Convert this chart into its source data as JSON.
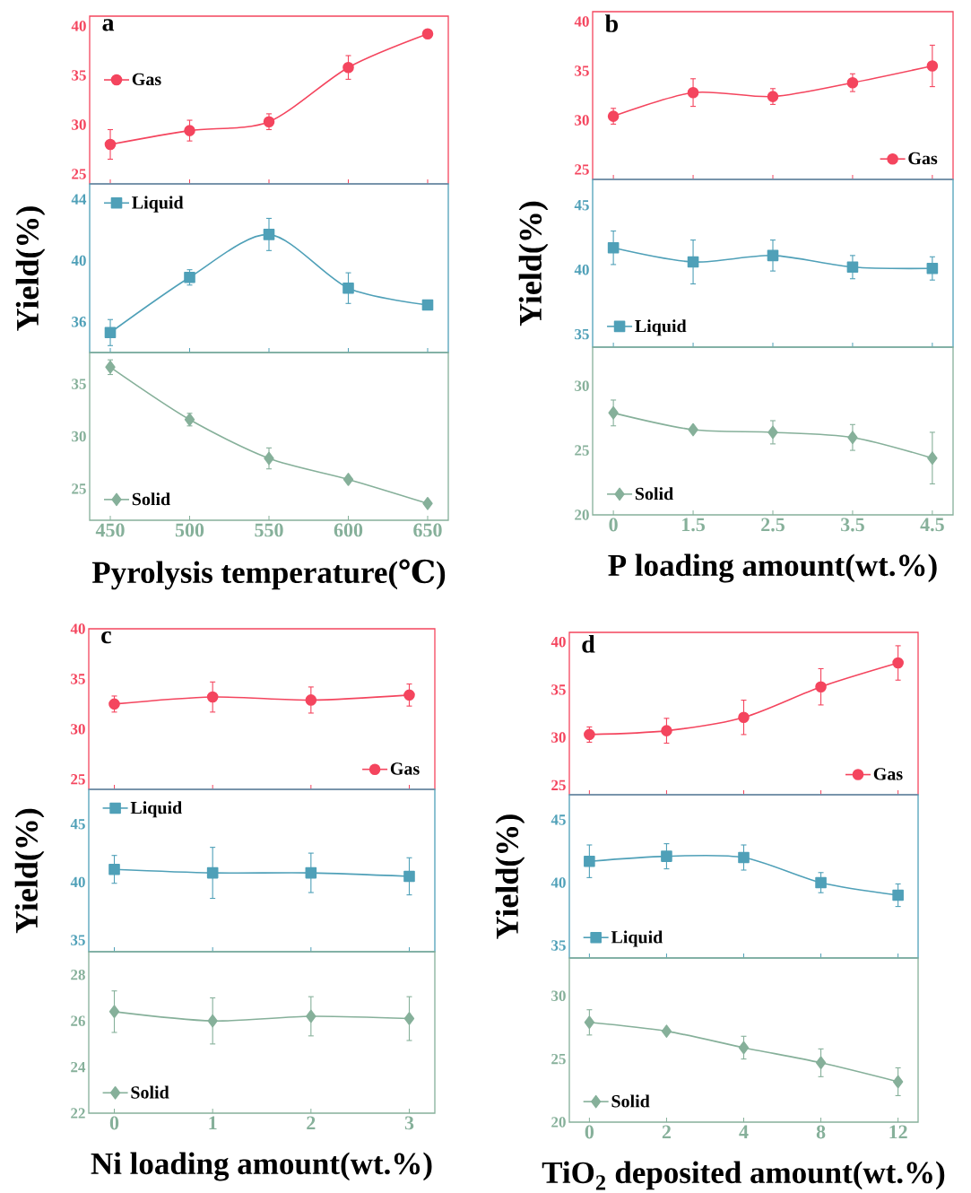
{
  "chart_data": [
    {
      "type": "line",
      "title": "a",
      "categories": [
        "450",
        "500",
        "550",
        "600",
        "650"
      ],
      "tick_labels": "y",
      "marker": "circle",
      "legend": "left",
      "ylim": [
        24,
        41
      ],
      "yticks": [
        25,
        30,
        35,
        40
      ],
      "series": [
        {
          "name": "Gas",
          "color": "#f4455e",
          "values": [
            28.0,
            29.4,
            30.3,
            35.8,
            39.2
          ],
          "errors": [
            1.5,
            1.05,
            0.8,
            1.2,
            null
          ]
        }
      ]
    },
    {
      "type": "line",
      "ylabel": "Yield(%)",
      "categories": [
        "450",
        "500",
        "550",
        "600",
        "650"
      ],
      "tick_labels": "y",
      "marker": "square",
      "legend": "top left",
      "ylim": [
        34,
        45
      ],
      "yticks": [
        36,
        40,
        44
      ],
      "series": [
        {
          "name": "Liquid",
          "color": "#4fa0b8",
          "values": [
            35.3,
            38.9,
            41.7,
            38.2,
            37.1
          ],
          "errors": [
            0.85,
            0.5,
            1.05,
            1.0,
            null
          ]
        }
      ]
    },
    {
      "type": "line",
      "xlabel": "Pyrolysis temperature(℃)",
      "categories": [
        "450",
        "500",
        "550",
        "600",
        "650"
      ],
      "marker": "diamond",
      "legend": "bottom left",
      "ylim": [
        22,
        38
      ],
      "yticks": [
        25,
        30,
        35
      ],
      "series": [
        {
          "name": "Solid",
          "color": "#86b09a",
          "values": [
            36.6,
            31.6,
            27.9,
            25.9,
            23.6
          ],
          "errors": [
            0.7,
            0.6,
            1.0,
            null,
            null
          ]
        }
      ]
    },
    {
      "type": "line",
      "title": "b",
      "categories": [
        "0",
        "1.5",
        "2.5",
        "3.5",
        "4.5"
      ],
      "tick_labels": "y",
      "marker": "circle",
      "legend": "bottom right",
      "ylim": [
        24,
        41
      ],
      "yticks": [
        25,
        30,
        35,
        40
      ],
      "series": [
        {
          "name": "Gas",
          "color": "#f4455e",
          "values": [
            30.4,
            32.8,
            32.4,
            33.8,
            35.5
          ],
          "errors": [
            0.8,
            1.4,
            0.8,
            0.9,
            2.1
          ]
        }
      ]
    },
    {
      "type": "line",
      "ylabel": "Yield(%)",
      "categories": [
        "0",
        "1.5",
        "2.5",
        "3.5",
        "4.5"
      ],
      "tick_labels": "y",
      "marker": "square",
      "legend": "bottom left",
      "ylim": [
        34,
        47
      ],
      "yticks": [
        35,
        40,
        45
      ],
      "series": [
        {
          "name": "Liquid",
          "color": "#4fa0b8",
          "values": [
            41.7,
            40.6,
            41.1,
            40.2,
            40.1
          ],
          "errors": [
            1.3,
            1.7,
            1.2,
            0.9,
            0.9
          ]
        }
      ]
    },
    {
      "type": "line",
      "xlabel": "P loading amount(wt.%)",
      "categories": [
        "0",
        "1.5",
        "2.5",
        "3.5",
        "4.5"
      ],
      "marker": "diamond",
      "legend": "bottom left",
      "ylim": [
        20,
        33
      ],
      "yticks": [
        20,
        25,
        30
      ],
      "series": [
        {
          "name": "Solid",
          "color": "#86b09a",
          "values": [
            27.9,
            26.6,
            26.4,
            26.0,
            24.4
          ],
          "errors": [
            1.0,
            null,
            0.9,
            1.0,
            2.0
          ]
        }
      ]
    },
    {
      "type": "line",
      "title": "c",
      "categories": [
        "0",
        "1",
        "2",
        "3"
      ],
      "tick_labels": "y",
      "marker": "circle",
      "legend": "bottom right",
      "ylim": [
        24,
        40
      ],
      "yticks": [
        25,
        30,
        35,
        40
      ],
      "series": [
        {
          "name": "Gas",
          "color": "#f4455e",
          "values": [
            32.5,
            33.2,
            32.9,
            33.4
          ],
          "errors": [
            0.8,
            1.5,
            1.3,
            1.1
          ]
        }
      ]
    },
    {
      "type": "line",
      "ylabel": "Yield(%)",
      "categories": [
        "0",
        "1",
        "2",
        "3"
      ],
      "tick_labels": "y",
      "marker": "square",
      "legend": "top left",
      "ylim": [
        34,
        48
      ],
      "yticks": [
        35,
        40,
        45
      ],
      "series": [
        {
          "name": "Liquid",
          "color": "#4fa0b8",
          "values": [
            41.1,
            40.8,
            40.8,
            40.5
          ],
          "errors": [
            1.2,
            2.2,
            1.7,
            1.6
          ]
        }
      ]
    },
    {
      "type": "line",
      "xlabel": "Ni loading amount(wt.%)",
      "categories": [
        "0",
        "1",
        "2",
        "3"
      ],
      "marker": "diamond",
      "legend": "bottom left",
      "ylim": [
        22,
        29
      ],
      "yticks": [
        22,
        24,
        26,
        28
      ],
      "series": [
        {
          "name": "Solid",
          "color": "#86b09a",
          "values": [
            26.4,
            26.0,
            26.2,
            26.1
          ],
          "errors": [
            0.9,
            1.0,
            0.85,
            0.95
          ]
        }
      ]
    },
    {
      "type": "line",
      "title": "d",
      "categories": [
        "0",
        "2",
        "4",
        "8",
        "12"
      ],
      "tick_labels": "y",
      "marker": "circle",
      "legend": "bottom right",
      "ylim": [
        24,
        41
      ],
      "yticks": [
        25,
        30,
        35,
        40
      ],
      "series": [
        {
          "name": "Gas",
          "color": "#f4455e",
          "values": [
            30.3,
            30.7,
            32.1,
            35.3,
            37.8
          ],
          "errors": [
            0.8,
            1.3,
            1.8,
            1.9,
            1.8
          ]
        }
      ]
    },
    {
      "type": "line",
      "ylabel": "Yield(%)",
      "categories": [
        "0",
        "2",
        "4",
        "8",
        "12"
      ],
      "tick_labels": "y",
      "marker": "square",
      "legend": "bottom left",
      "ylim": [
        34,
        47
      ],
      "yticks": [
        35,
        40,
        45
      ],
      "series": [
        {
          "name": "Liquid",
          "color": "#4fa0b8",
          "values": [
            41.7,
            42.1,
            42.0,
            40.0,
            39.0
          ],
          "errors": [
            1.3,
            1.0,
            1.0,
            0.8,
            0.9
          ]
        }
      ]
    },
    {
      "type": "line",
      "xlabel": "TiO$_{2}$ deposited amount(wt.%)",
      "categories": [
        "0",
        "2",
        "4",
        "8",
        "12"
      ],
      "marker": "diamond",
      "legend": "bottom left",
      "ylim": [
        20,
        33
      ],
      "yticks": [
        20,
        25,
        30
      ],
      "series": [
        {
          "name": "Solid",
          "color": "#86b09a",
          "values": [
            27.9,
            27.2,
            25.9,
            24.7,
            23.2
          ],
          "errors": [
            1.0,
            null,
            0.9,
            1.1,
            1.1
          ]
        }
      ]
    }
  ]
}
